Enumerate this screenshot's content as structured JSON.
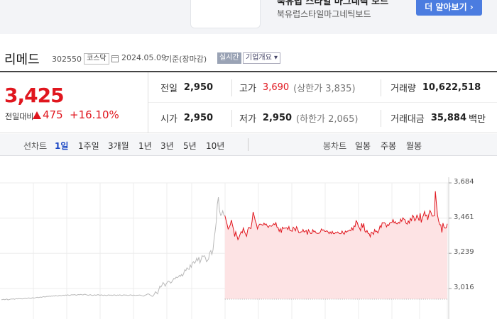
{
  "ad": {
    "title": "북유럽 스타일 마그네틱 보드",
    "subtitle": "북유럽스타일마그네틱보드",
    "button_label": "더 알아보기 ›"
  },
  "stock": {
    "name": "리메드",
    "code": "302550",
    "market": "코스닥",
    "date": "2024.05.09",
    "basis": "기준(장마감)",
    "realtime_label": "실시간",
    "overview_label": "기업개요 ▾"
  },
  "quote": {
    "price": "3,425",
    "change_label": "전일대비",
    "change_value": "475",
    "change_pct": "+16.10%",
    "prev_close_label": "전일",
    "prev_close": "2,950",
    "high_label": "고가",
    "high": "3,690",
    "upper_limit": "(상한가 3,835)",
    "volume_label": "거래량",
    "volume": "10,622,518",
    "open_label": "시가",
    "open": "2,950",
    "low_label": "저가",
    "low": "2,950",
    "lower_limit": "(하한가 2,065)",
    "amount_label": "거래대금",
    "amount": "35,884",
    "amount_unit": "백만"
  },
  "tabs": {
    "line_chart_label": "선차트",
    "periods": [
      "1일",
      "1주일",
      "3개월",
      "1년",
      "3년",
      "5년",
      "10년"
    ],
    "active_period": "1일",
    "candle_chart_label": "봉차트",
    "candles": [
      "일봉",
      "주봉",
      "월봉"
    ]
  },
  "colors": {
    "up": "#e0161e",
    "active_tab": "#1a47c4"
  },
  "chart_data": {
    "type": "line",
    "y_ticks": [
      "3,684",
      "3,461",
      "3,239",
      "3,016"
    ],
    "ylim": [
      2880,
      3720
    ],
    "base_value": 2950,
    "grid": true,
    "series": [
      {
        "values": [
          2945,
          2946,
          2948,
          2945,
          2947,
          2950,
          2944,
          2946,
          2948,
          2950,
          2949,
          2951,
          2948,
          2950,
          2952,
          2950,
          2953,
          2951,
          2952,
          2950,
          2951,
          2953,
          2955,
          2952,
          2954,
          2957,
          2955,
          2953,
          2956,
          2958,
          2955,
          2957,
          2959,
          2961,
          2958,
          2960,
          2962,
          2960,
          2963,
          2965,
          2962,
          2964,
          2967,
          2965,
          2968,
          2966,
          2969,
          2967,
          2970,
          2968,
          2972,
          2970,
          2968,
          2971,
          2973,
          2970,
          2972,
          2974,
          2972,
          2975,
          2973,
          2976,
          2974,
          2972,
          2975,
          2977,
          2975,
          2978,
          2976,
          2973,
          2976,
          2978,
          2976,
          2979,
          2977,
          2975,
          2978,
          2980,
          2977,
          2975,
          2973,
          2975,
          2977,
          2974,
          2972,
          2974,
          2976,
          2973,
          2975,
          2978,
          2975,
          2973,
          2976,
          2974,
          2972,
          2975,
          2973,
          2971,
          2974,
          2976,
          2973,
          2975,
          2972,
          2974,
          2976,
          2974,
          2972,
          2975,
          2973,
          2976,
          2974,
          2972,
          2974,
          2976,
          2974,
          2975,
          2973,
          2972,
          2974,
          2976,
          2974,
          2972,
          2975,
          2973,
          2972,
          2974,
          2973,
          2975,
          2974,
          2972,
          2970,
          2968,
          2972,
          2975,
          2978,
          2983,
          2980,
          2975,
          2971,
          2966,
          2970,
          2981,
          2996,
          2989,
          2982,
          3008,
          3031,
          3024,
          3037,
          3054,
          3045,
          3031,
          3048,
          3057,
          3063,
          3059,
          3050,
          3057,
          3069,
          3080,
          3076,
          3088,
          3084,
          3089,
          3099,
          3093,
          3105,
          3095,
          3111,
          3135,
          3129,
          3147,
          3141,
          3136,
          3165,
          3150,
          3177,
          3186,
          3175,
          3185,
          3208,
          3192,
          3214,
          3178,
          3197,
          3223,
          3219,
          3224,
          3211,
          3186,
          3193,
          3203,
          3244,
          3256,
          3231,
          3260,
          3329,
          3378,
          3435,
          3549,
          3594,
          3509,
          3479,
          3483,
          3508,
          3482,
          3477,
          3449,
          3423,
          3392,
          3403,
          3420,
          3449,
          3416,
          3388,
          3345,
          3375,
          3351,
          3325,
          3338,
          3360,
          3376,
          3368,
          3399,
          3376,
          3360,
          3346,
          3387,
          3403,
          3399,
          3395,
          3440,
          3500,
          3475,
          3445,
          3424,
          3393,
          3412,
          3423,
          3423,
          3419,
          3416,
          3430,
          3419,
          3425,
          3411,
          3402,
          3413,
          3412,
          3410,
          3417,
          3426,
          3419,
          3433,
          3404,
          3402,
          3378,
          3395,
          3369,
          3404,
          3396,
          3398,
          3398,
          3400,
          3389,
          3408,
          3383,
          3381,
          3378,
          3404,
          3395,
          3381,
          3407,
          3394,
          3370,
          3368,
          3374,
          3375,
          3390,
          3373,
          3378,
          3383,
          3357,
          3388,
          3376,
          3364,
          3364,
          3388,
          3374,
          3380,
          3368,
          3365,
          3365,
          3366,
          3374,
          3393,
          3384,
          3387,
          3378,
          3377,
          3382,
          3374,
          3363,
          3374,
          3363,
          3378,
          3363,
          3363,
          3370,
          3367,
          3374,
          3366,
          3363,
          3363,
          3380,
          3367,
          3359,
          3379,
          3372,
          3379,
          3380,
          3386,
          3381,
          3401,
          3386,
          3412,
          3408,
          3445,
          3433,
          3409,
          3399,
          3382,
          3428,
          3400,
          3428,
          3379,
          3371,
          3383,
          3364,
          3362,
          3343,
          3373,
          3368,
          3358,
          3389,
          3375,
          3379,
          3367,
          3384,
          3413,
          3401,
          3432,
          3431,
          3432,
          3426,
          3406,
          3421,
          3414,
          3431,
          3434,
          3434,
          3452,
          3431,
          3439,
          3426,
          3425,
          3435,
          3429,
          3455,
          3441,
          3463,
          3455,
          3451,
          3429,
          3423,
          3444,
          3430,
          3460,
          3446,
          3479,
          3470,
          3444,
          3455,
          3480,
          3465,
          3445,
          3492,
          3434,
          3463,
          3479,
          3503,
          3475,
          3481,
          3450,
          3485,
          3510,
          3496,
          3474,
          3474,
          3476,
          3631,
          3550,
          3481,
          3443,
          3420,
          3419,
          3370,
          3430,
          3404,
          3398,
          3400,
          3425
        ]
      }
    ]
  }
}
